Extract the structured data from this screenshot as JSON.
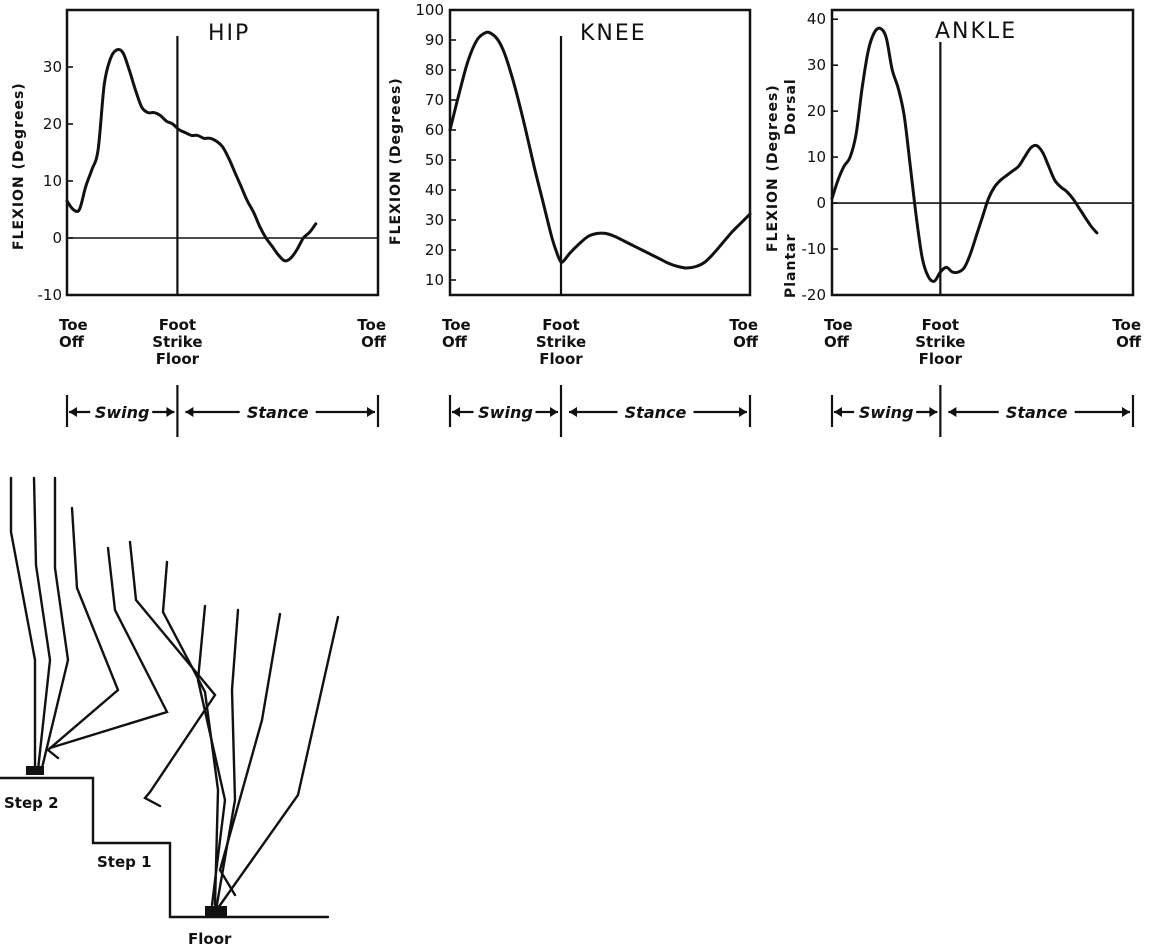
{
  "chart_data": [
    {
      "type": "line",
      "title": "HIP",
      "ylabel": "FLEXION (Degrees)",
      "ylim": [
        -10,
        40
      ],
      "yticks": [
        "30",
        "20",
        "10",
        "0",
        "-10"
      ],
      "x_labels": {
        "start": "Toe\nOff",
        "mid": "Foot\nStrike\nFloor",
        "end": "Toe\nOff"
      },
      "phases": {
        "swing": "Swing",
        "stance": "Stance"
      },
      "x": [
        0,
        2,
        4,
        6,
        8,
        10,
        12,
        14,
        16,
        18,
        20,
        22,
        24,
        26,
        28,
        30,
        32,
        34,
        36,
        38,
        40,
        42,
        44,
        46,
        48,
        50,
        52,
        54,
        56,
        58,
        60,
        62,
        64,
        66,
        68,
        70,
        72,
        74,
        76,
        78,
        80,
        82,
        84,
        86,
        88,
        90,
        92,
        94,
        96,
        98,
        100
      ],
      "y": [
        6.5,
        5,
        5,
        9,
        12,
        15.5,
        27,
        31.5,
        33,
        32.5,
        29.5,
        26,
        23,
        22,
        22,
        21.5,
        20.5,
        20,
        19,
        18.5,
        18,
        18,
        17.5,
        17.5,
        17,
        16,
        14,
        11.5,
        9,
        6.5,
        4.5,
        2,
        0,
        -1.5,
        -3,
        -4,
        -3.5,
        -2,
        0,
        1,
        2.5,
        null,
        null,
        null,
        null,
        null,
        null,
        null,
        null,
        null,
        null
      ],
      "x_range": [
        0,
        100
      ],
      "foot_strike_x": 35.5
    },
    {
      "type": "line",
      "title": "KNEE",
      "ylabel": "FLEXION (Degrees)",
      "ylim": [
        5,
        100
      ],
      "yticks": [
        "100",
        "90",
        "80",
        "70",
        "60",
        "50",
        "40",
        "30",
        "20",
        "10"
      ],
      "x_labels": {
        "start": "Toe\nOff",
        "mid": "Foot\nStrike\nFloor",
        "end": "Toe\nOff"
      },
      "phases": {
        "swing": "Swing",
        "stance": "Stance"
      },
      "x": [
        0,
        3,
        6,
        9,
        12,
        14,
        16,
        18,
        20,
        22,
        25,
        28,
        31,
        34,
        36,
        37,
        38,
        40,
        43,
        46,
        49,
        52,
        55,
        58,
        61,
        64,
        67,
        70,
        73,
        76,
        79,
        82,
        85,
        88,
        91,
        94,
        97,
        100
      ],
      "y": [
        60,
        72,
        83,
        90,
        92.5,
        92,
        90,
        86,
        80,
        73,
        61,
        48,
        36,
        24,
        18,
        16,
        16.5,
        19,
        22,
        24.5,
        25.5,
        25.5,
        24.5,
        23,
        21.5,
        20,
        18.5,
        17,
        15.5,
        14.5,
        14,
        14.5,
        16,
        19,
        22.5,
        26,
        29,
        32
      ],
      "x_range": [
        0,
        100
      ],
      "foot_strike_x": 37
    },
    {
      "type": "line",
      "title": "ANKLE",
      "ylabel": "FLEXION (Degrees)",
      "ylabel_top": "Dorsal",
      "ylabel_bottom": "Plantar",
      "ylim": [
        -20,
        42
      ],
      "yticks": [
        "40",
        "30",
        "20",
        "10",
        "0",
        "-10",
        "-20"
      ],
      "x_labels": {
        "start": "Toe\nOff",
        "mid": "Foot\nStrike\nFloor",
        "end": "Toe\nOff"
      },
      "phases": {
        "swing": "Swing",
        "stance": "Stance"
      },
      "x": [
        0,
        2,
        4,
        6,
        8,
        10,
        12,
        14,
        16,
        18,
        20,
        22,
        24,
        26,
        28,
        30,
        32,
        34,
        36,
        38,
        40,
        42,
        44,
        46,
        48,
        50,
        52,
        54,
        56,
        58,
        60,
        62,
        64,
        66,
        68,
        70,
        72,
        74,
        76,
        78,
        80,
        82,
        84,
        86,
        88,
        90,
        92,
        94,
        96,
        98,
        100
      ],
      "y": [
        1,
        5,
        8,
        10,
        15,
        25,
        33,
        37,
        38,
        36,
        29,
        25,
        19,
        8,
        -3,
        -12,
        -16,
        -17,
        -15,
        -14,
        -15,
        -15,
        -14,
        -11,
        -7,
        -3,
        1,
        3.5,
        5,
        6,
        7,
        8,
        10,
        12,
        12.5,
        11,
        8,
        5,
        3.5,
        2.5,
        1,
        -1,
        -3,
        -5,
        -6.5,
        null,
        null,
        null,
        null,
        null,
        null
      ],
      "x_range": [
        0,
        100
      ],
      "foot_strike_x": 36
    }
  ],
  "diagram": {
    "step2_label": "Step 2",
    "step1_label": "Step 1",
    "floor_label": "Floor"
  }
}
